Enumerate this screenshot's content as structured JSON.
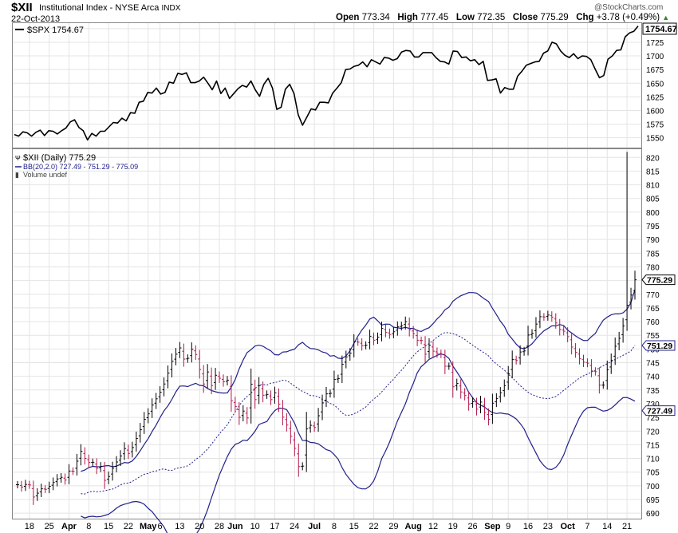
{
  "header": {
    "symbol": "$XII",
    "name": "Institutional Index - NYSE Arca",
    "exchange": "INDX",
    "date": "22-Oct-2013",
    "open_label": "Open",
    "open": "773.34",
    "high_label": "High",
    "high": "777.45",
    "low_label": "Low",
    "low": "772.35",
    "close_label": "Close",
    "close": "775.29",
    "chg_label": "Chg",
    "chg": "+3.78 (+0.49%)",
    "watermark": "@StockCharts.com"
  },
  "colors": {
    "line": "#000000",
    "band": "#20208a",
    "up": "#000000",
    "down": "#b0184a",
    "grid": "#e4e4e4"
  },
  "chart_data": [
    {
      "type": "line",
      "title": "$SPX 1754.67",
      "legend": "$SPX 1754.67",
      "last_value_label": "1754.67",
      "ylim": [
        1532,
        1760
      ],
      "y_ticks": [
        1550,
        1575,
        1600,
        1625,
        1650,
        1675,
        1700,
        1725,
        1750
      ],
      "values": [
        1556,
        1553,
        1561,
        1559,
        1553,
        1560,
        1564,
        1554,
        1563,
        1562,
        1557,
        1563,
        1568,
        1579,
        1583,
        1569,
        1563,
        1546,
        1558,
        1553,
        1562,
        1562,
        1570,
        1578,
        1577,
        1586,
        1581,
        1596,
        1595,
        1615,
        1617,
        1633,
        1632,
        1641,
        1630,
        1633,
        1652,
        1650,
        1668,
        1666,
        1669,
        1651,
        1651,
        1654,
        1661,
        1650,
        1638,
        1654,
        1631,
        1641,
        1622,
        1631,
        1640,
        1646,
        1643,
        1654,
        1638,
        1626,
        1648,
        1659,
        1641,
        1602,
        1606,
        1639,
        1648,
        1631,
        1592,
        1573,
        1588,
        1603,
        1601,
        1615,
        1615,
        1614,
        1632,
        1641,
        1651,
        1675,
        1676,
        1681,
        1683,
        1689,
        1680,
        1693,
        1689,
        1685,
        1697,
        1696,
        1692,
        1695,
        1707,
        1710,
        1709,
        1698,
        1698,
        1706,
        1706,
        1706,
        1697,
        1690,
        1689,
        1685,
        1709,
        1708,
        1697,
        1698,
        1691,
        1693,
        1684,
        1690,
        1655,
        1656,
        1658,
        1632,
        1642,
        1639,
        1639,
        1663,
        1672,
        1683,
        1686,
        1689,
        1690,
        1705,
        1709,
        1725,
        1722,
        1709,
        1701,
        1697,
        1704,
        1695,
        1700,
        1699,
        1693,
        1676,
        1660,
        1664,
        1694,
        1700,
        1710,
        1711,
        1735,
        1742,
        1745,
        1754.67
      ]
    },
    {
      "type": "ohlc",
      "title": "$XII (Daily) 775.29",
      "legend_price": "$XII (Daily) 775.29",
      "legend_bb": "BB(20,2.0) 727.49 - 751.29 - 775.09",
      "legend_volume": "Volume undef",
      "ylim": [
        688,
        823
      ],
      "y_ticks": [
        690,
        695,
        700,
        705,
        710,
        715,
        720,
        725,
        730,
        735,
        740,
        745,
        750,
        755,
        760,
        765,
        770,
        775,
        780,
        785,
        790,
        795,
        800,
        805,
        810,
        815,
        820
      ],
      "price_label": "775.29",
      "bb_mid_label": "751.29",
      "bb_low_label": "727.49",
      "x_tick_labels": [
        "18",
        "25",
        "Apr",
        "8",
        "15",
        "22",
        "May",
        "6",
        "13",
        "20",
        "28",
        "Jun",
        "10",
        "17",
        "24",
        "Jul",
        "8",
        "15",
        "22",
        "29",
        "Aug",
        "12",
        "19",
        "26",
        "Sep",
        "9",
        "16",
        "23",
        "Oct",
        "7",
        "14",
        "21"
      ],
      "x_tick_index": [
        3,
        8,
        13,
        18,
        23,
        28,
        33,
        36,
        41,
        46,
        51,
        55,
        60,
        65,
        70,
        75,
        80,
        85,
        90,
        95,
        100,
        105,
        110,
        115,
        120,
        124,
        129,
        134,
        139,
        144,
        149,
        154
      ],
      "spike": {
        "index": 154,
        "high": 822
      },
      "closes": [
        700.4,
        699.5,
        700.5,
        700.3,
        695.9,
        697.3,
        698.9,
        698.7,
        699.8,
        701.2,
        702.5,
        703.1,
        702.1,
        705.4,
        705.3,
        709.0,
        712.6,
        710.0,
        708.5,
        708.6,
        706.4,
        707.1,
        702.0,
        703.4,
        706.4,
        708.7,
        710.9,
        713.6,
        711.8,
        714.0,
        717.3,
        720.5,
        724.3,
        726.3,
        729.5,
        731.8,
        734.2,
        737.2,
        741.2,
        745.5,
        748.1,
        750.4,
        746.3,
        746.6,
        749.9,
        748.0,
        742.5,
        737.2,
        741.6,
        736.6,
        740.4,
        739.3,
        738.0,
        738.6,
        731.1,
        729.0,
        725.0,
        727.3,
        724.8,
        737.1,
        731.5,
        736.6,
        733.1,
        733.4,
        731.5,
        734.0,
        729.8,
        725.1,
        722.2,
        718.1,
        713.7,
        707.0,
        707.2,
        720.8,
        722.1,
        721.3,
        725.6,
        730.3,
        733.6,
        733.8,
        738.9,
        739.2,
        744.4,
        747.1,
        748.5,
        752.6,
        752.5,
        751.2,
        751.4,
        754.6,
        753.2,
        754.3,
        757.5,
        756.1,
        755.3,
        756.3,
        758.1,
        758.5,
        760.0,
        757.0,
        755.6,
        753.2,
        753.1,
        748.1,
        751.4,
        749.2,
        748.4,
        748.1,
        743.7,
        743.7,
        736.2,
        737.4,
        734.3,
        733.0,
        729.9,
        730.7,
        728.0,
        730.6,
        726.8,
        724.3,
        730.2,
        731.9,
        734.0,
        736.6,
        740.9,
        746.2,
        745.8,
        748.9,
        749.3,
        755.1,
        755.7,
        759.1,
        761.8,
        761.7,
        762.4,
        761.6,
        759.5,
        757.1,
        756.5,
        754.5,
        750.7,
        748.8,
        746.5,
        745.2,
        744.8,
        742.0,
        741.7,
        736.8,
        736.8,
        742.4,
        745.8,
        751.0,
        753.9,
        758.4,
        766.0,
        769.7,
        775.29
      ],
      "mid": [
        697.1,
        697.0,
        697.7,
        698.0,
        697.8,
        697.9,
        698.2,
        698.5,
        698.8,
        699.5,
        700.3,
        700.9,
        701.0,
        701.6,
        702.5,
        703.4,
        704.2,
        704.5,
        705.2,
        705.4,
        705.9,
        706.2,
        705.7,
        705.6,
        706.3,
        706.6,
        706.9,
        707.3,
        708.3,
        709.7,
        710.5,
        712.0,
        713.4,
        715.2,
        717.1,
        719.0,
        720.6,
        722.3,
        724.7,
        727.0,
        729.2,
        731.3,
        732.6,
        733.9,
        735.5,
        736.9,
        737.0,
        736.8,
        737.5,
        737.7,
        738.1,
        738.6,
        738.4,
        737.5,
        736.4,
        735.4,
        734.5,
        733.8,
        733.0,
        732.9,
        732.5,
        731.6,
        730.9,
        730.1,
        729.5,
        728.2,
        726.6,
        725.8,
        725.8,
        726.3,
        727.0,
        727.9,
        728.8,
        730.4,
        731.7,
        732.8,
        734.3,
        735.9,
        737.5,
        738.9,
        740.7,
        742.2,
        743.9,
        745.8,
        747.5,
        749.0,
        750.0,
        751.0,
        752.0,
        753.1,
        754.3,
        755.3,
        756.0,
        755.9,
        755.6,
        755.1,
        754.4,
        753.5,
        752.4,
        751.4,
        750.4,
        749.4,
        748.5,
        747.5,
        745.8,
        744.5,
        743.4,
        742.3,
        740.8,
        739.5,
        738.1,
        736.6,
        735.4,
        734.2,
        733.3,
        732.8,
        732.2,
        732.0,
        731.8,
        732.2,
        732.6,
        733.7,
        734.9,
        736.0,
        737.2,
        738.3,
        739.4,
        740.2,
        740.8,
        741.6,
        742.2,
        743.1,
        743.9,
        744.6,
        745.4,
        746.2,
        746.9,
        747.7,
        748.4,
        749.3,
        751.29
      ]
    }
  ]
}
